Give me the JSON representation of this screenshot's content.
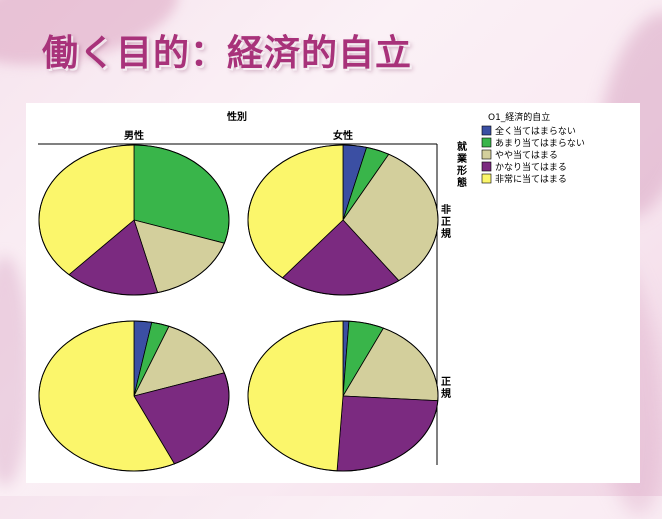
{
  "slide_title": "働く目的：経済的自立",
  "chart_data": {
    "type": "pie",
    "title": "",
    "column_header": "性別",
    "columns": [
      "男性",
      "女性"
    ],
    "row_header": "就業形態",
    "rows": [
      "非正規",
      "正規"
    ],
    "legend_title": "O1_経済的自立",
    "legend_placement": "top-right",
    "categories": [
      "全く当てはまらない",
      "あまり当てはまらない",
      "やや当てはまる",
      "かなり当てはまる",
      "非常に当てはまる"
    ],
    "colors": [
      "#3b4fa3",
      "#39b54a",
      "#d3cf9c",
      "#7b2a80",
      "#fbf66b"
    ],
    "pies": [
      {
        "row": "非正規",
        "column": "男性",
        "values": [
          0,
          30,
          16,
          16,
          38
        ]
      },
      {
        "row": "非正規",
        "column": "女性",
        "values": [
          4,
          4,
          32,
          21,
          39
        ]
      },
      {
        "row": "正規",
        "column": "男性",
        "values": [
          3,
          3,
          14,
          23,
          57
        ]
      },
      {
        "row": "正規",
        "column": "女性",
        "values": [
          1,
          6,
          19,
          25,
          49
        ]
      }
    ]
  }
}
